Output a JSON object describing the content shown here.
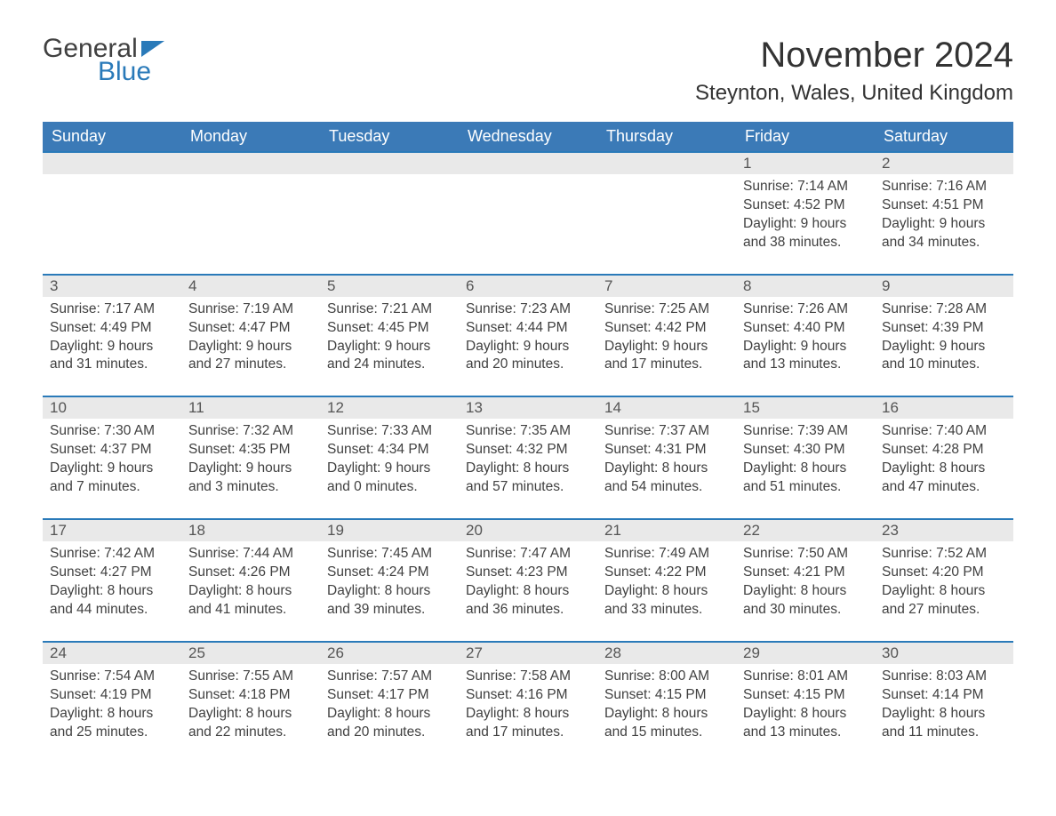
{
  "logo": {
    "word1": "General",
    "word2": "Blue"
  },
  "title": "November 2024",
  "location": "Steynton, Wales, United Kingdom",
  "colors": {
    "header_bg": "#3b7ab7",
    "accent": "#2a7ab9",
    "daynum_bg": "#e9e9e9",
    "text": "#404040",
    "page_bg": "#ffffff"
  },
  "layout": {
    "columns": 7,
    "start_day": "Sunday",
    "leading_blanks": 5
  },
  "day_headers": [
    "Sunday",
    "Monday",
    "Tuesday",
    "Wednesday",
    "Thursday",
    "Friday",
    "Saturday"
  ],
  "labels": {
    "sunrise": "Sunrise:",
    "sunset": "Sunset:",
    "daylight": "Daylight:"
  },
  "weeks": [
    [
      null,
      null,
      null,
      null,
      null,
      {
        "n": "1",
        "sunrise": "7:14 AM",
        "sunset": "4:52 PM",
        "daylight": "9 hours and 38 minutes."
      },
      {
        "n": "2",
        "sunrise": "7:16 AM",
        "sunset": "4:51 PM",
        "daylight": "9 hours and 34 minutes."
      }
    ],
    [
      {
        "n": "3",
        "sunrise": "7:17 AM",
        "sunset": "4:49 PM",
        "daylight": "9 hours and 31 minutes."
      },
      {
        "n": "4",
        "sunrise": "7:19 AM",
        "sunset": "4:47 PM",
        "daylight": "9 hours and 27 minutes."
      },
      {
        "n": "5",
        "sunrise": "7:21 AM",
        "sunset": "4:45 PM",
        "daylight": "9 hours and 24 minutes."
      },
      {
        "n": "6",
        "sunrise": "7:23 AM",
        "sunset": "4:44 PM",
        "daylight": "9 hours and 20 minutes."
      },
      {
        "n": "7",
        "sunrise": "7:25 AM",
        "sunset": "4:42 PM",
        "daylight": "9 hours and 17 minutes."
      },
      {
        "n": "8",
        "sunrise": "7:26 AM",
        "sunset": "4:40 PM",
        "daylight": "9 hours and 13 minutes."
      },
      {
        "n": "9",
        "sunrise": "7:28 AM",
        "sunset": "4:39 PM",
        "daylight": "9 hours and 10 minutes."
      }
    ],
    [
      {
        "n": "10",
        "sunrise": "7:30 AM",
        "sunset": "4:37 PM",
        "daylight": "9 hours and 7 minutes."
      },
      {
        "n": "11",
        "sunrise": "7:32 AM",
        "sunset": "4:35 PM",
        "daylight": "9 hours and 3 minutes."
      },
      {
        "n": "12",
        "sunrise": "7:33 AM",
        "sunset": "4:34 PM",
        "daylight": "9 hours and 0 minutes."
      },
      {
        "n": "13",
        "sunrise": "7:35 AM",
        "sunset": "4:32 PM",
        "daylight": "8 hours and 57 minutes."
      },
      {
        "n": "14",
        "sunrise": "7:37 AM",
        "sunset": "4:31 PM",
        "daylight": "8 hours and 54 minutes."
      },
      {
        "n": "15",
        "sunrise": "7:39 AM",
        "sunset": "4:30 PM",
        "daylight": "8 hours and 51 minutes."
      },
      {
        "n": "16",
        "sunrise": "7:40 AM",
        "sunset": "4:28 PM",
        "daylight": "8 hours and 47 minutes."
      }
    ],
    [
      {
        "n": "17",
        "sunrise": "7:42 AM",
        "sunset": "4:27 PM",
        "daylight": "8 hours and 44 minutes."
      },
      {
        "n": "18",
        "sunrise": "7:44 AM",
        "sunset": "4:26 PM",
        "daylight": "8 hours and 41 minutes."
      },
      {
        "n": "19",
        "sunrise": "7:45 AM",
        "sunset": "4:24 PM",
        "daylight": "8 hours and 39 minutes."
      },
      {
        "n": "20",
        "sunrise": "7:47 AM",
        "sunset": "4:23 PM",
        "daylight": "8 hours and 36 minutes."
      },
      {
        "n": "21",
        "sunrise": "7:49 AM",
        "sunset": "4:22 PM",
        "daylight": "8 hours and 33 minutes."
      },
      {
        "n": "22",
        "sunrise": "7:50 AM",
        "sunset": "4:21 PM",
        "daylight": "8 hours and 30 minutes."
      },
      {
        "n": "23",
        "sunrise": "7:52 AM",
        "sunset": "4:20 PM",
        "daylight": "8 hours and 27 minutes."
      }
    ],
    [
      {
        "n": "24",
        "sunrise": "7:54 AM",
        "sunset": "4:19 PM",
        "daylight": "8 hours and 25 minutes."
      },
      {
        "n": "25",
        "sunrise": "7:55 AM",
        "sunset": "4:18 PM",
        "daylight": "8 hours and 22 minutes."
      },
      {
        "n": "26",
        "sunrise": "7:57 AM",
        "sunset": "4:17 PM",
        "daylight": "8 hours and 20 minutes."
      },
      {
        "n": "27",
        "sunrise": "7:58 AM",
        "sunset": "4:16 PM",
        "daylight": "8 hours and 17 minutes."
      },
      {
        "n": "28",
        "sunrise": "8:00 AM",
        "sunset": "4:15 PM",
        "daylight": "8 hours and 15 minutes."
      },
      {
        "n": "29",
        "sunrise": "8:01 AM",
        "sunset": "4:15 PM",
        "daylight": "8 hours and 13 minutes."
      },
      {
        "n": "30",
        "sunrise": "8:03 AM",
        "sunset": "4:14 PM",
        "daylight": "8 hours and 11 minutes."
      }
    ]
  ]
}
